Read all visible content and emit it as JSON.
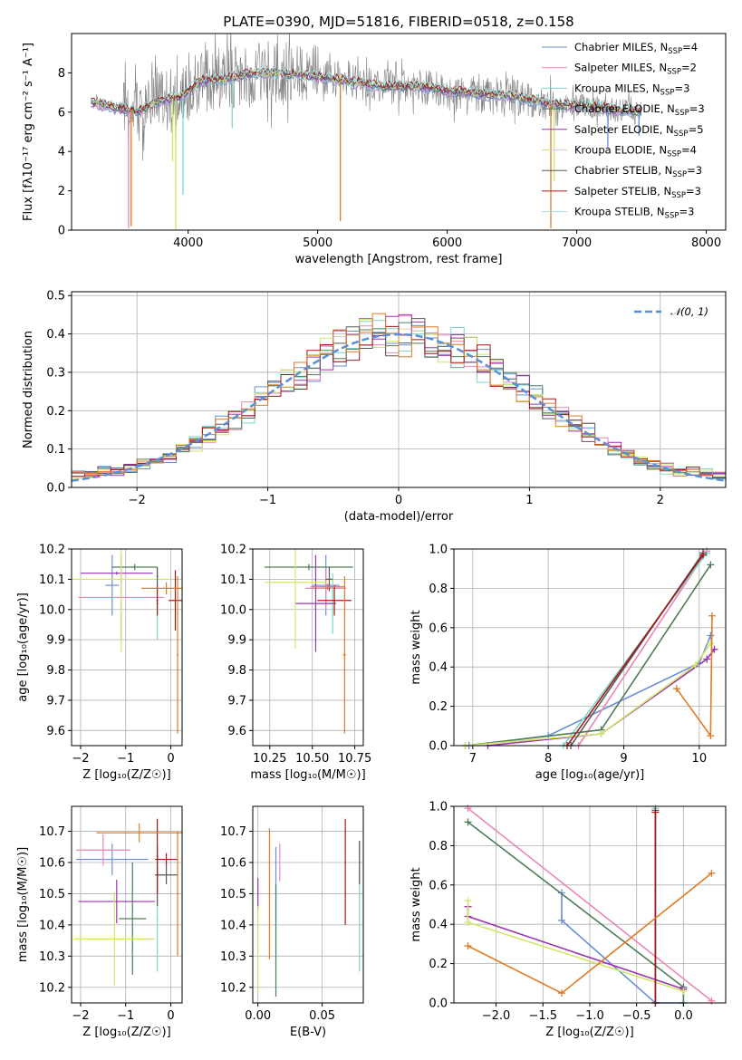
{
  "palette": {
    "Chabrier MILES": "#6a8fd6",
    "Salpeter MILES": "#e986b8",
    "Kroupa MILES": "#7dd6cc",
    "Chabrier ELODIE": "#4d7d56",
    "Salpeter ELODIE": "#9c33b0",
    "Kroupa ELODIE": "#d2e66a",
    "Chabrier STELIB": "#5a5a5a",
    "Salpeter STELIB": "#a31919",
    "Kroupa STELIB": "#9de3df",
    "orange": "#e07b25",
    "gray": "#808080"
  },
  "chart_data": [
    {
      "id": "spectrum",
      "type": "line",
      "title": "PLATE=0390, MJD=51816, FIBERID=0518, z=0.158",
      "xlabel": "wavelength [Angstrom, rest frame]",
      "ylabel": "Flux [fλ10⁻¹⁷ erg cm⁻² s⁻¹ A⁻¹]",
      "xlim": [
        3100,
        8150
      ],
      "ylim": [
        0,
        10
      ],
      "xticks": [
        4000,
        5000,
        6000,
        7000,
        8000
      ],
      "yticks": [
        0,
        2,
        4,
        6,
        8
      ],
      "legend_position": "right",
      "legend": [
        {
          "prefix": "Chabrier MILES, N",
          "sub": "SSP",
          "suffix": "=4",
          "color": "#6a8fd6"
        },
        {
          "prefix": "Salpeter MILES, N",
          "sub": "SSP",
          "suffix": "=2",
          "color": "#e986b8"
        },
        {
          "prefix": "Kroupa MILES, N",
          "sub": "SSP",
          "suffix": "=3",
          "color": "#7dd6cc"
        },
        {
          "prefix": "Chabrier ELODIE, N",
          "sub": "SSP",
          "suffix": "=3",
          "color": "#4d7d56"
        },
        {
          "prefix": "Salpeter ELODIE, N",
          "sub": "SSP",
          "suffix": "=5",
          "color": "#9c33b0"
        },
        {
          "prefix": "Kroupa ELODIE, N",
          "sub": "SSP",
          "suffix": "=4",
          "color": "#d2e66a"
        },
        {
          "prefix": "Chabrier STELIB, N",
          "sub": "SSP",
          "suffix": "=3",
          "color": "#5a5a5a"
        },
        {
          "prefix": "Salpeter STELIB, N",
          "sub": "SSP",
          "suffix": "=3",
          "color": "#a31919"
        },
        {
          "prefix": "Kroupa STELIB, N",
          "sub": "SSP",
          "suffix": "=3",
          "color": "#9de3df"
        }
      ],
      "model_shape": [
        [
          3250,
          6.5
        ],
        [
          3400,
          6.3
        ],
        [
          3600,
          6.0
        ],
        [
          3800,
          6.6
        ],
        [
          3950,
          6.8
        ],
        [
          4100,
          7.6
        ],
        [
          4300,
          7.7
        ],
        [
          4500,
          8.0
        ],
        [
          4800,
          7.9
        ],
        [
          5000,
          7.8
        ],
        [
          5200,
          7.6
        ],
        [
          5500,
          7.3
        ],
        [
          5800,
          7.3
        ],
        [
          6000,
          7.1
        ],
        [
          6300,
          6.9
        ],
        [
          6500,
          6.8
        ],
        [
          6800,
          6.4
        ],
        [
          7100,
          6.3
        ],
        [
          7300,
          6.1
        ],
        [
          7500,
          6.0
        ]
      ],
      "spikes": [
        [
          3540,
          0.1
        ],
        [
          3560,
          0.2
        ],
        [
          3880,
          3.5
        ],
        [
          3905,
          0
        ],
        [
          3960,
          1.8
        ],
        [
          4340,
          5.2
        ],
        [
          5175,
          0.45
        ],
        [
          6800,
          0.1
        ],
        [
          6825,
          2.5
        ],
        [
          7240,
          4.2
        ],
        [
          7480,
          4.8
        ]
      ]
    },
    {
      "id": "residuals",
      "type": "histogram",
      "xlabel": "(data-model)/error",
      "ylabel": "Normed distribution",
      "xlim": [
        -2.5,
        2.5
      ],
      "ylim": [
        0,
        0.51
      ],
      "xticks": [
        -2,
        -1,
        0,
        1,
        2
      ],
      "yticks": [
        0.0,
        0.1,
        0.2,
        0.3,
        0.4,
        0.5
      ],
      "legend_position": "upper right",
      "reference_curve": {
        "name": "𝒩(0, 1)",
        "color": "#5b8fd6",
        "dash": "dashed"
      },
      "bin_width": 0.1,
      "series_colors": [
        "#6a8fd6",
        "#e986b8",
        "#7dd6cc",
        "#4d7d56",
        "#9c33b0",
        "#d2e66a",
        "#5a5a5a",
        "#a31919",
        "#e07b25"
      ],
      "series_seeds": [
        1.3,
        2.1,
        3.7,
        4.2,
        5.9,
        6.4,
        7.1,
        8.8,
        9.5
      ]
    },
    {
      "id": "age_vs_Z",
      "type": "errorbar",
      "xlabel": "Z [log₁₀(Z/Z☉)]",
      "ylabel": "age  [log₁₀(age/yr)]",
      "xlim": [
        -2.2,
        0.25
      ],
      "ylim": [
        9.55,
        10.2
      ],
      "xticks": [
        -2,
        -1,
        0
      ],
      "yticks": [
        9.6,
        9.7,
        9.8,
        9.9,
        10.0,
        10.1,
        10.2
      ],
      "points": [
        {
          "x": -1.3,
          "y": 10.08,
          "xerr": 0.15,
          "yerr": 0.1,
          "color": "#6a8fd6"
        },
        {
          "x": -1.1,
          "y": 10.04,
          "xerr": 0.95,
          "yerr": 0.14,
          "color": "#e986b8"
        },
        {
          "x": -0.3,
          "y": 10.02,
          "xerr": 0.03,
          "yerr": 0.12,
          "color": "#7dd6cc"
        },
        {
          "x": -0.8,
          "y": 10.14,
          "xerr": 0.5,
          "yerr": 0.01,
          "color": "#4d7d56"
        },
        {
          "x": -1.2,
          "y": 10.12,
          "xerr": 0.8,
          "yerr": 0.005,
          "color": "#9c33b0"
        },
        {
          "x": -1.1,
          "y": 10.1,
          "xerr": 1.1,
          "yerr": 0.24,
          "color": "#d2e66a"
        },
        {
          "x": -0.3,
          "y": 10.11,
          "xerr": 0.02,
          "yerr": 0.03,
          "color": "#5a5a5a"
        },
        {
          "x": -0.3,
          "y": 10.03,
          "xerr": 0.02,
          "yerr": 0.05,
          "color": "#a31919"
        },
        {
          "x": 0.1,
          "y": 10.03,
          "xerr": 0.15,
          "yerr": 0.1,
          "color": "#a31919"
        },
        {
          "x": -0.1,
          "y": 10.07,
          "xerr": 0.55,
          "yerr": 0.02,
          "color": "#e07b25"
        },
        {
          "x": 0.15,
          "y": 9.85,
          "xerr": 0.02,
          "yerr": 0.26,
          "color": "#e07b25"
        }
      ]
    },
    {
      "id": "age_vs_mass",
      "type": "errorbar",
      "xlabel": "mass [log₁₀(M/M☉)]",
      "ylabel": "",
      "xlim": [
        10.15,
        10.8
      ],
      "ylim": [
        9.55,
        10.2
      ],
      "xticks": [
        10.25,
        10.5,
        10.75
      ],
      "xticklabels": [
        "10.25",
        "10.50",
        "10.75"
      ],
      "yticks": [
        9.6,
        9.7,
        9.8,
        9.9,
        10.0,
        10.1,
        10.2
      ],
      "points": [
        {
          "x": 10.58,
          "y": 10.08,
          "xerr": 0.08,
          "yerr": 0.1,
          "color": "#6a8fd6"
        },
        {
          "x": 10.58,
          "y": 10.07,
          "xerr": 0.12,
          "yerr": 0.07,
          "color": "#e986b8"
        },
        {
          "x": 10.62,
          "y": 10.02,
          "xerr": 0.02,
          "yerr": 0.1,
          "color": "#7dd6cc"
        },
        {
          "x": 10.48,
          "y": 10.14,
          "xerr": 0.26,
          "yerr": 0.01,
          "color": "#4d7d56"
        },
        {
          "x": 10.52,
          "y": 10.02,
          "xerr": 0.12,
          "yerr": 0.16,
          "color": "#9c33b0"
        },
        {
          "x": 10.4,
          "y": 10.09,
          "xerr": 0.18,
          "yerr": 0.22,
          "color": "#d2e66a"
        },
        {
          "x": 10.6,
          "y": 10.1,
          "xerr": 0.02,
          "yerr": 0.04,
          "color": "#5a5a5a"
        },
        {
          "x": 10.63,
          "y": 10.03,
          "xerr": 0.1,
          "yerr": 0.05,
          "color": "#a31919"
        },
        {
          "x": 10.59,
          "y": 10.075,
          "xerr": 0.1,
          "yerr": 0.01,
          "color": "#e07b25"
        },
        {
          "x": 10.69,
          "y": 9.85,
          "xerr": 0.01,
          "yerr": 0.26,
          "color": "#e07b25"
        }
      ]
    },
    {
      "id": "weight_vs_age",
      "type": "line",
      "xlabel": "age  [log₁₀(age/yr)]",
      "ylabel": "mass weight",
      "xlim": [
        6.75,
        10.35
      ],
      "ylim": [
        0,
        1.0
      ],
      "xticks": [
        7,
        8,
        9,
        10
      ],
      "yticks": [
        0.0,
        0.2,
        0.4,
        0.6,
        0.8,
        1.0
      ],
      "series": [
        {
          "color": "#6a8fd6",
          "points": [
            [
              6.95,
              0.0
            ],
            [
              8.0,
              0.05
            ],
            [
              10.0,
              0.42
            ],
            [
              10.15,
              0.56
            ]
          ]
        },
        {
          "color": "#e986b8",
          "points": [
            [
              8.4,
              0.0
            ],
            [
              10.1,
              0.99
            ]
          ]
        },
        {
          "color": "#7dd6cc",
          "points": [
            [
              8.2,
              0.0
            ],
            [
              10.1,
              0.98
            ]
          ]
        },
        {
          "color": "#4d7d56",
          "points": [
            [
              6.9,
              0.0
            ],
            [
              8.7,
              0.08
            ],
            [
              10.15,
              0.92
            ]
          ]
        },
        {
          "color": "#9c33b0",
          "points": [
            [
              7.2,
              0.0
            ],
            [
              8.7,
              0.06
            ],
            [
              10.1,
              0.44
            ],
            [
              10.2,
              0.49
            ]
          ]
        },
        {
          "color": "#d2e66a",
          "points": [
            [
              6.9,
              0.0
            ],
            [
              8.7,
              0.06
            ],
            [
              9.95,
              0.41
            ],
            [
              10.15,
              0.52
            ]
          ]
        },
        {
          "color": "#5a5a5a",
          "points": [
            [
              8.3,
              0.0
            ],
            [
              10.05,
              0.98
            ]
          ]
        },
        {
          "color": "#a31919",
          "points": [
            [
              8.25,
              0.0
            ],
            [
              10.05,
              0.97
            ]
          ]
        },
        {
          "color": "#e07b25",
          "points": [
            [
              9.7,
              0.29
            ],
            [
              10.15,
              0.05
            ],
            [
              10.17,
              0.66
            ]
          ]
        }
      ]
    },
    {
      "id": "mass_vs_Z",
      "type": "errorbar",
      "xlabel": "Z [log₁₀(Z/Z☉)]",
      "ylabel": "mass [log₁₀(M/M☉)]",
      "xlim": [
        -2.2,
        0.25
      ],
      "ylim": [
        10.15,
        10.78
      ],
      "xticks": [
        -2,
        -1,
        0
      ],
      "yticks": [
        10.2,
        10.3,
        10.4,
        10.5,
        10.6,
        10.7
      ],
      "points": [
        {
          "x": -1.3,
          "y": 10.61,
          "xerr": 0.8,
          "yerr": 0.05,
          "color": "#6a8fd6"
        },
        {
          "x": -1.5,
          "y": 10.64,
          "xerr": 0.6,
          "yerr": 0.05,
          "color": "#e986b8"
        },
        {
          "x": -0.3,
          "y": 10.42,
          "xerr": 0.02,
          "yerr": 0.17,
          "color": "#7dd6cc"
        },
        {
          "x": -0.85,
          "y": 10.42,
          "xerr": 0.3,
          "yerr": 0.18,
          "color": "#4d7d56"
        },
        {
          "x": -1.2,
          "y": 10.475,
          "xerr": 0.85,
          "yerr": 0.07,
          "color": "#9c33b0"
        },
        {
          "x": -1.25,
          "y": 10.355,
          "xerr": 0.9,
          "yerr": 0.15,
          "color": "#d2e66a"
        },
        {
          "x": -0.3,
          "y": 10.56,
          "xerr": 0.02,
          "yerr": 0.1,
          "color": "#5a5a5a"
        },
        {
          "x": -0.1,
          "y": 10.56,
          "xerr": 0.25,
          "yerr": 0.03,
          "color": "#5a5a5a"
        },
        {
          "x": -0.3,
          "y": 10.62,
          "xerr": 0.02,
          "yerr": 0.12,
          "color": "#a31919"
        },
        {
          "x": -0.1,
          "y": 10.61,
          "xerr": 0.25,
          "yerr": 0.02,
          "color": "#a31919"
        },
        {
          "x": -0.7,
          "y": 10.695,
          "xerr": 0.95,
          "yerr": 0.03,
          "color": "#e07b25"
        },
        {
          "x": 0.15,
          "y": 10.5,
          "xerr": 0.02,
          "yerr": 0.2,
          "color": "#e07b25"
        }
      ]
    },
    {
      "id": "mass_vs_ebv",
      "type": "errorbar",
      "xlabel": "E(B-V)",
      "ylabel": "",
      "xlim": [
        -0.004,
        0.082
      ],
      "ylim": [
        10.15,
        10.78
      ],
      "xticks": [
        0.0,
        0.05
      ],
      "xticklabels": [
        "0.00",
        "0.05"
      ],
      "yticks": [
        10.2,
        10.3,
        10.4,
        10.5,
        10.6,
        10.7
      ],
      "points": [
        {
          "x": 0.0,
          "y": 10.5,
          "xerr": 0,
          "yerr": 0.05,
          "color": "#9c33b0"
        },
        {
          "x": 0.0,
          "y": 10.32,
          "xerr": 0,
          "yerr": 0.14,
          "color": "#d2e66a"
        },
        {
          "x": 0.009,
          "y": 10.5,
          "xerr": 0,
          "yerr": 0.21,
          "color": "#e07b25"
        },
        {
          "x": 0.014,
          "y": 10.53,
          "xerr": 0,
          "yerr": 0.12,
          "color": "#6a8fd6"
        },
        {
          "x": 0.014,
          "y": 10.35,
          "xerr": 0,
          "yerr": 0.18,
          "color": "#4d7d56"
        },
        {
          "x": 0.017,
          "y": 10.6,
          "xerr": 0,
          "yerr": 0.06,
          "color": "#e986b8"
        },
        {
          "x": 0.068,
          "y": 10.57,
          "xerr": 0,
          "yerr": 0.17,
          "color": "#a31919"
        },
        {
          "x": 0.079,
          "y": 10.46,
          "xerr": 0,
          "yerr": 0.21,
          "color": "#7dd6cc"
        },
        {
          "x": 0.079,
          "y": 10.6,
          "xerr": 0,
          "yerr": 0.07,
          "color": "#5a5a5a"
        }
      ]
    },
    {
      "id": "weight_vs_Z",
      "type": "line",
      "xlabel": "Z [log₁₀(Z/Z☉)]",
      "ylabel": "mass weight",
      "xlim": [
        -2.45,
        0.45
      ],
      "ylim": [
        0,
        1.0
      ],
      "xticks": [
        -2.0,
        -1.5,
        -1.0,
        -0.5,
        0.0
      ],
      "xticklabels": [
        "−2.0",
        "−1.5",
        "−1.0",
        "−0.5",
        "0.0"
      ],
      "yticks": [
        0.0,
        0.2,
        0.4,
        0.6,
        0.8,
        1.0
      ],
      "series": [
        {
          "color": "#6a8fd6",
          "points": [
            [
              -1.3,
              0.56
            ],
            [
              -1.3,
              0.42
            ],
            [
              -0.3,
              0.0
            ],
            [
              0.0,
              0.0
            ]
          ]
        },
        {
          "color": "#e986b8",
          "points": [
            [
              -2.3,
              0.99
            ],
            [
              0.3,
              0.01
            ]
          ]
        },
        {
          "color": "#7dd6cc",
          "points": [
            [
              -0.3,
              0.99
            ],
            [
              -0.3,
              0.0
            ]
          ]
        },
        {
          "color": "#4d7d56",
          "points": [
            [
              -2.3,
              0.92
            ],
            [
              0.0,
              0.08
            ],
            [
              0.0,
              0.0
            ]
          ]
        },
        {
          "color": "#9c33b0",
          "points": [
            [
              -2.3,
              0.49
            ],
            [
              -2.3,
              0.44
            ],
            [
              0.0,
              0.07
            ]
          ]
        },
        {
          "color": "#d2e66a",
          "points": [
            [
              -2.3,
              0.52
            ],
            [
              -2.3,
              0.41
            ],
            [
              0.0,
              0.06
            ]
          ]
        },
        {
          "color": "#5a5a5a",
          "points": [
            [
              -0.3,
              0.98
            ],
            [
              -0.3,
              0.0
            ]
          ]
        },
        {
          "color": "#a31919",
          "points": [
            [
              -0.3,
              0.97
            ],
            [
              -0.3,
              0.0
            ]
          ]
        },
        {
          "color": "#e07b25",
          "points": [
            [
              -2.3,
              0.29
            ],
            [
              -1.3,
              0.05
            ],
            [
              0.3,
              0.66
            ]
          ]
        }
      ]
    }
  ]
}
